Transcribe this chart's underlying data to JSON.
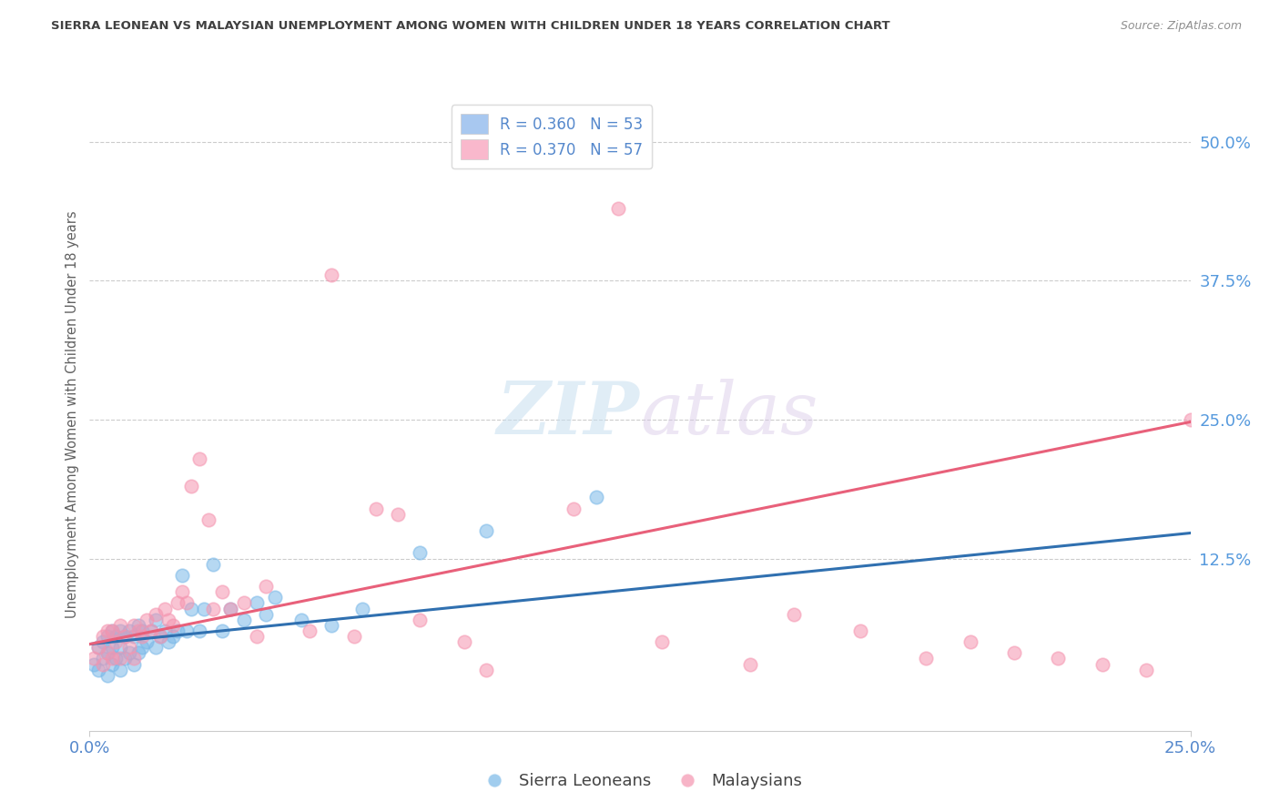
{
  "title": "SIERRA LEONEAN VS MALAYSIAN UNEMPLOYMENT AMONG WOMEN WITH CHILDREN UNDER 18 YEARS CORRELATION CHART",
  "source": "Source: ZipAtlas.com",
  "ylabel": "Unemployment Among Women with Children Under 18 years",
  "ytick_labels": [
    "50.0%",
    "37.5%",
    "25.0%",
    "12.5%"
  ],
  "ytick_values": [
    0.5,
    0.375,
    0.25,
    0.125
  ],
  "xmin": 0.0,
  "xmax": 0.25,
  "ymin": -0.03,
  "ymax": 0.54,
  "legend_entries": [
    {
      "label": "R = 0.360   N = 53",
      "facecolor": "#a8c8f0"
    },
    {
      "label": "R = 0.370   N = 57",
      "facecolor": "#f9b8cc"
    }
  ],
  "watermark_zip": "ZIP",
  "watermark_atlas": "atlas",
  "blue_color": "#7ab8e8",
  "pink_color": "#f595b0",
  "blue_line_color": "#3070b0",
  "pink_line_color": "#e8607a",
  "title_color": "#404040",
  "source_color": "#909090",
  "axis_label_color": "#606060",
  "tick_color": "#5588cc",
  "right_tick_color": "#5599dd",
  "blue_scatter_x": [
    0.001,
    0.002,
    0.002,
    0.003,
    0.003,
    0.004,
    0.004,
    0.004,
    0.005,
    0.005,
    0.005,
    0.006,
    0.006,
    0.007,
    0.007,
    0.007,
    0.008,
    0.008,
    0.009,
    0.009,
    0.01,
    0.01,
    0.011,
    0.011,
    0.012,
    0.012,
    0.013,
    0.014,
    0.015,
    0.015,
    0.016,
    0.017,
    0.018,
    0.019,
    0.02,
    0.021,
    0.022,
    0.023,
    0.025,
    0.026,
    0.028,
    0.03,
    0.032,
    0.035,
    0.038,
    0.04,
    0.042,
    0.048,
    0.055,
    0.062,
    0.075,
    0.09,
    0.115
  ],
  "blue_scatter_y": [
    0.03,
    0.025,
    0.045,
    0.035,
    0.05,
    0.02,
    0.04,
    0.055,
    0.03,
    0.045,
    0.06,
    0.035,
    0.055,
    0.025,
    0.045,
    0.06,
    0.035,
    0.055,
    0.04,
    0.06,
    0.03,
    0.055,
    0.04,
    0.065,
    0.045,
    0.06,
    0.05,
    0.06,
    0.045,
    0.07,
    0.055,
    0.06,
    0.05,
    0.055,
    0.06,
    0.11,
    0.06,
    0.08,
    0.06,
    0.08,
    0.12,
    0.06,
    0.08,
    0.07,
    0.085,
    0.075,
    0.09,
    0.07,
    0.065,
    0.08,
    0.13,
    0.15,
    0.18
  ],
  "pink_scatter_x": [
    0.001,
    0.002,
    0.003,
    0.003,
    0.004,
    0.004,
    0.005,
    0.005,
    0.006,
    0.007,
    0.007,
    0.008,
    0.009,
    0.01,
    0.01,
    0.011,
    0.012,
    0.013,
    0.014,
    0.015,
    0.016,
    0.017,
    0.018,
    0.019,
    0.02,
    0.021,
    0.022,
    0.023,
    0.025,
    0.027,
    0.028,
    0.03,
    0.032,
    0.035,
    0.038,
    0.04,
    0.05,
    0.055,
    0.06,
    0.065,
    0.07,
    0.075,
    0.085,
    0.09,
    0.11,
    0.12,
    0.13,
    0.15,
    0.16,
    0.175,
    0.19,
    0.2,
    0.21,
    0.22,
    0.23,
    0.24,
    0.25
  ],
  "pink_scatter_y": [
    0.035,
    0.045,
    0.03,
    0.055,
    0.04,
    0.06,
    0.035,
    0.06,
    0.05,
    0.035,
    0.065,
    0.055,
    0.045,
    0.035,
    0.065,
    0.06,
    0.055,
    0.07,
    0.06,
    0.075,
    0.055,
    0.08,
    0.07,
    0.065,
    0.085,
    0.095,
    0.085,
    0.19,
    0.215,
    0.16,
    0.08,
    0.095,
    0.08,
    0.085,
    0.055,
    0.1,
    0.06,
    0.38,
    0.055,
    0.17,
    0.165,
    0.07,
    0.05,
    0.025,
    0.17,
    0.44,
    0.05,
    0.03,
    0.075,
    0.06,
    0.035,
    0.05,
    0.04,
    0.035,
    0.03,
    0.025,
    0.25
  ],
  "blue_trend_x": [
    0.0,
    0.25
  ],
  "blue_trend_y": [
    0.048,
    0.148
  ],
  "pink_trend_x": [
    0.0,
    0.25
  ],
  "pink_trend_y": [
    0.048,
    0.248
  ]
}
